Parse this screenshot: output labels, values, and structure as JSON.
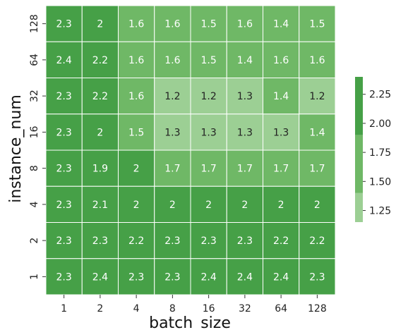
{
  "chart_data": {
    "type": "heatmap",
    "title": "",
    "xlabel": "batch_size",
    "ylabel": "instance_num",
    "x_categories": [
      "1",
      "2",
      "4",
      "8",
      "16",
      "32",
      "64",
      "128"
    ],
    "y_categories": [
      "128",
      "64",
      "32",
      "16",
      "8",
      "4",
      "2",
      "1"
    ],
    "values": [
      [
        2.3,
        2.0,
        1.6,
        1.6,
        1.5,
        1.6,
        1.4,
        1.5
      ],
      [
        2.4,
        2.2,
        1.6,
        1.6,
        1.5,
        1.4,
        1.6,
        1.6
      ],
      [
        2.3,
        2.2,
        1.6,
        1.2,
        1.2,
        1.3,
        1.4,
        1.2
      ],
      [
        2.3,
        2.0,
        1.5,
        1.3,
        1.3,
        1.3,
        1.3,
        1.4
      ],
      [
        2.3,
        1.9,
        2.0,
        1.7,
        1.7,
        1.7,
        1.7,
        1.7
      ],
      [
        2.3,
        2.1,
        2.0,
        2.0,
        2.0,
        2.0,
        2.0,
        2.0
      ],
      [
        2.3,
        2.3,
        2.2,
        2.3,
        2.3,
        2.3,
        2.2,
        2.2
      ],
      [
        2.3,
        2.4,
        2.3,
        2.3,
        2.4,
        2.4,
        2.4,
        2.3
      ]
    ],
    "value_labels": [
      [
        "2.3",
        "2",
        "1.6",
        "1.6",
        "1.5",
        "1.6",
        "1.4",
        "1.5"
      ],
      [
        "2.4",
        "2.2",
        "1.6",
        "1.6",
        "1.5",
        "1.4",
        "1.6",
        "1.6"
      ],
      [
        "2.3",
        "2.2",
        "1.6",
        "1.2",
        "1.2",
        "1.3",
        "1.4",
        "1.2"
      ],
      [
        "2.3",
        "2",
        "1.5",
        "1.3",
        "1.3",
        "1.3",
        "1.3",
        "1.4"
      ],
      [
        "2.3",
        "1.9",
        "2",
        "1.7",
        "1.7",
        "1.7",
        "1.7",
        "1.7"
      ],
      [
        "2.3",
        "2.1",
        "2",
        "2",
        "2",
        "2",
        "2",
        "2"
      ],
      [
        "2.3",
        "2.3",
        "2.2",
        "2.3",
        "2.3",
        "2.3",
        "2.2",
        "2.2"
      ],
      [
        "2.3",
        "2.4",
        "2.3",
        "2.3",
        "2.4",
        "2.4",
        "2.4",
        "2.3"
      ]
    ],
    "colorbar": {
      "range": [
        1.15,
        2.4
      ],
      "ticks": [
        2.25,
        2.0,
        1.75,
        1.5,
        1.25
      ],
      "tick_labels": [
        "2.25",
        "2.00",
        "1.75",
        "1.50",
        "1.25"
      ],
      "bands": [
        {
          "from": 1.15,
          "to": 1.4,
          "color": "#9ccf94",
          "text_color": "#222222"
        },
        {
          "from": 1.4,
          "to": 1.9,
          "color": "#6fb866",
          "text_color": "#ffffff"
        },
        {
          "from": 1.9,
          "to": 2.4,
          "color": "#46a047",
          "text_color": "#ffffff"
        }
      ]
    },
    "grid_line_color": "#ffffff"
  }
}
